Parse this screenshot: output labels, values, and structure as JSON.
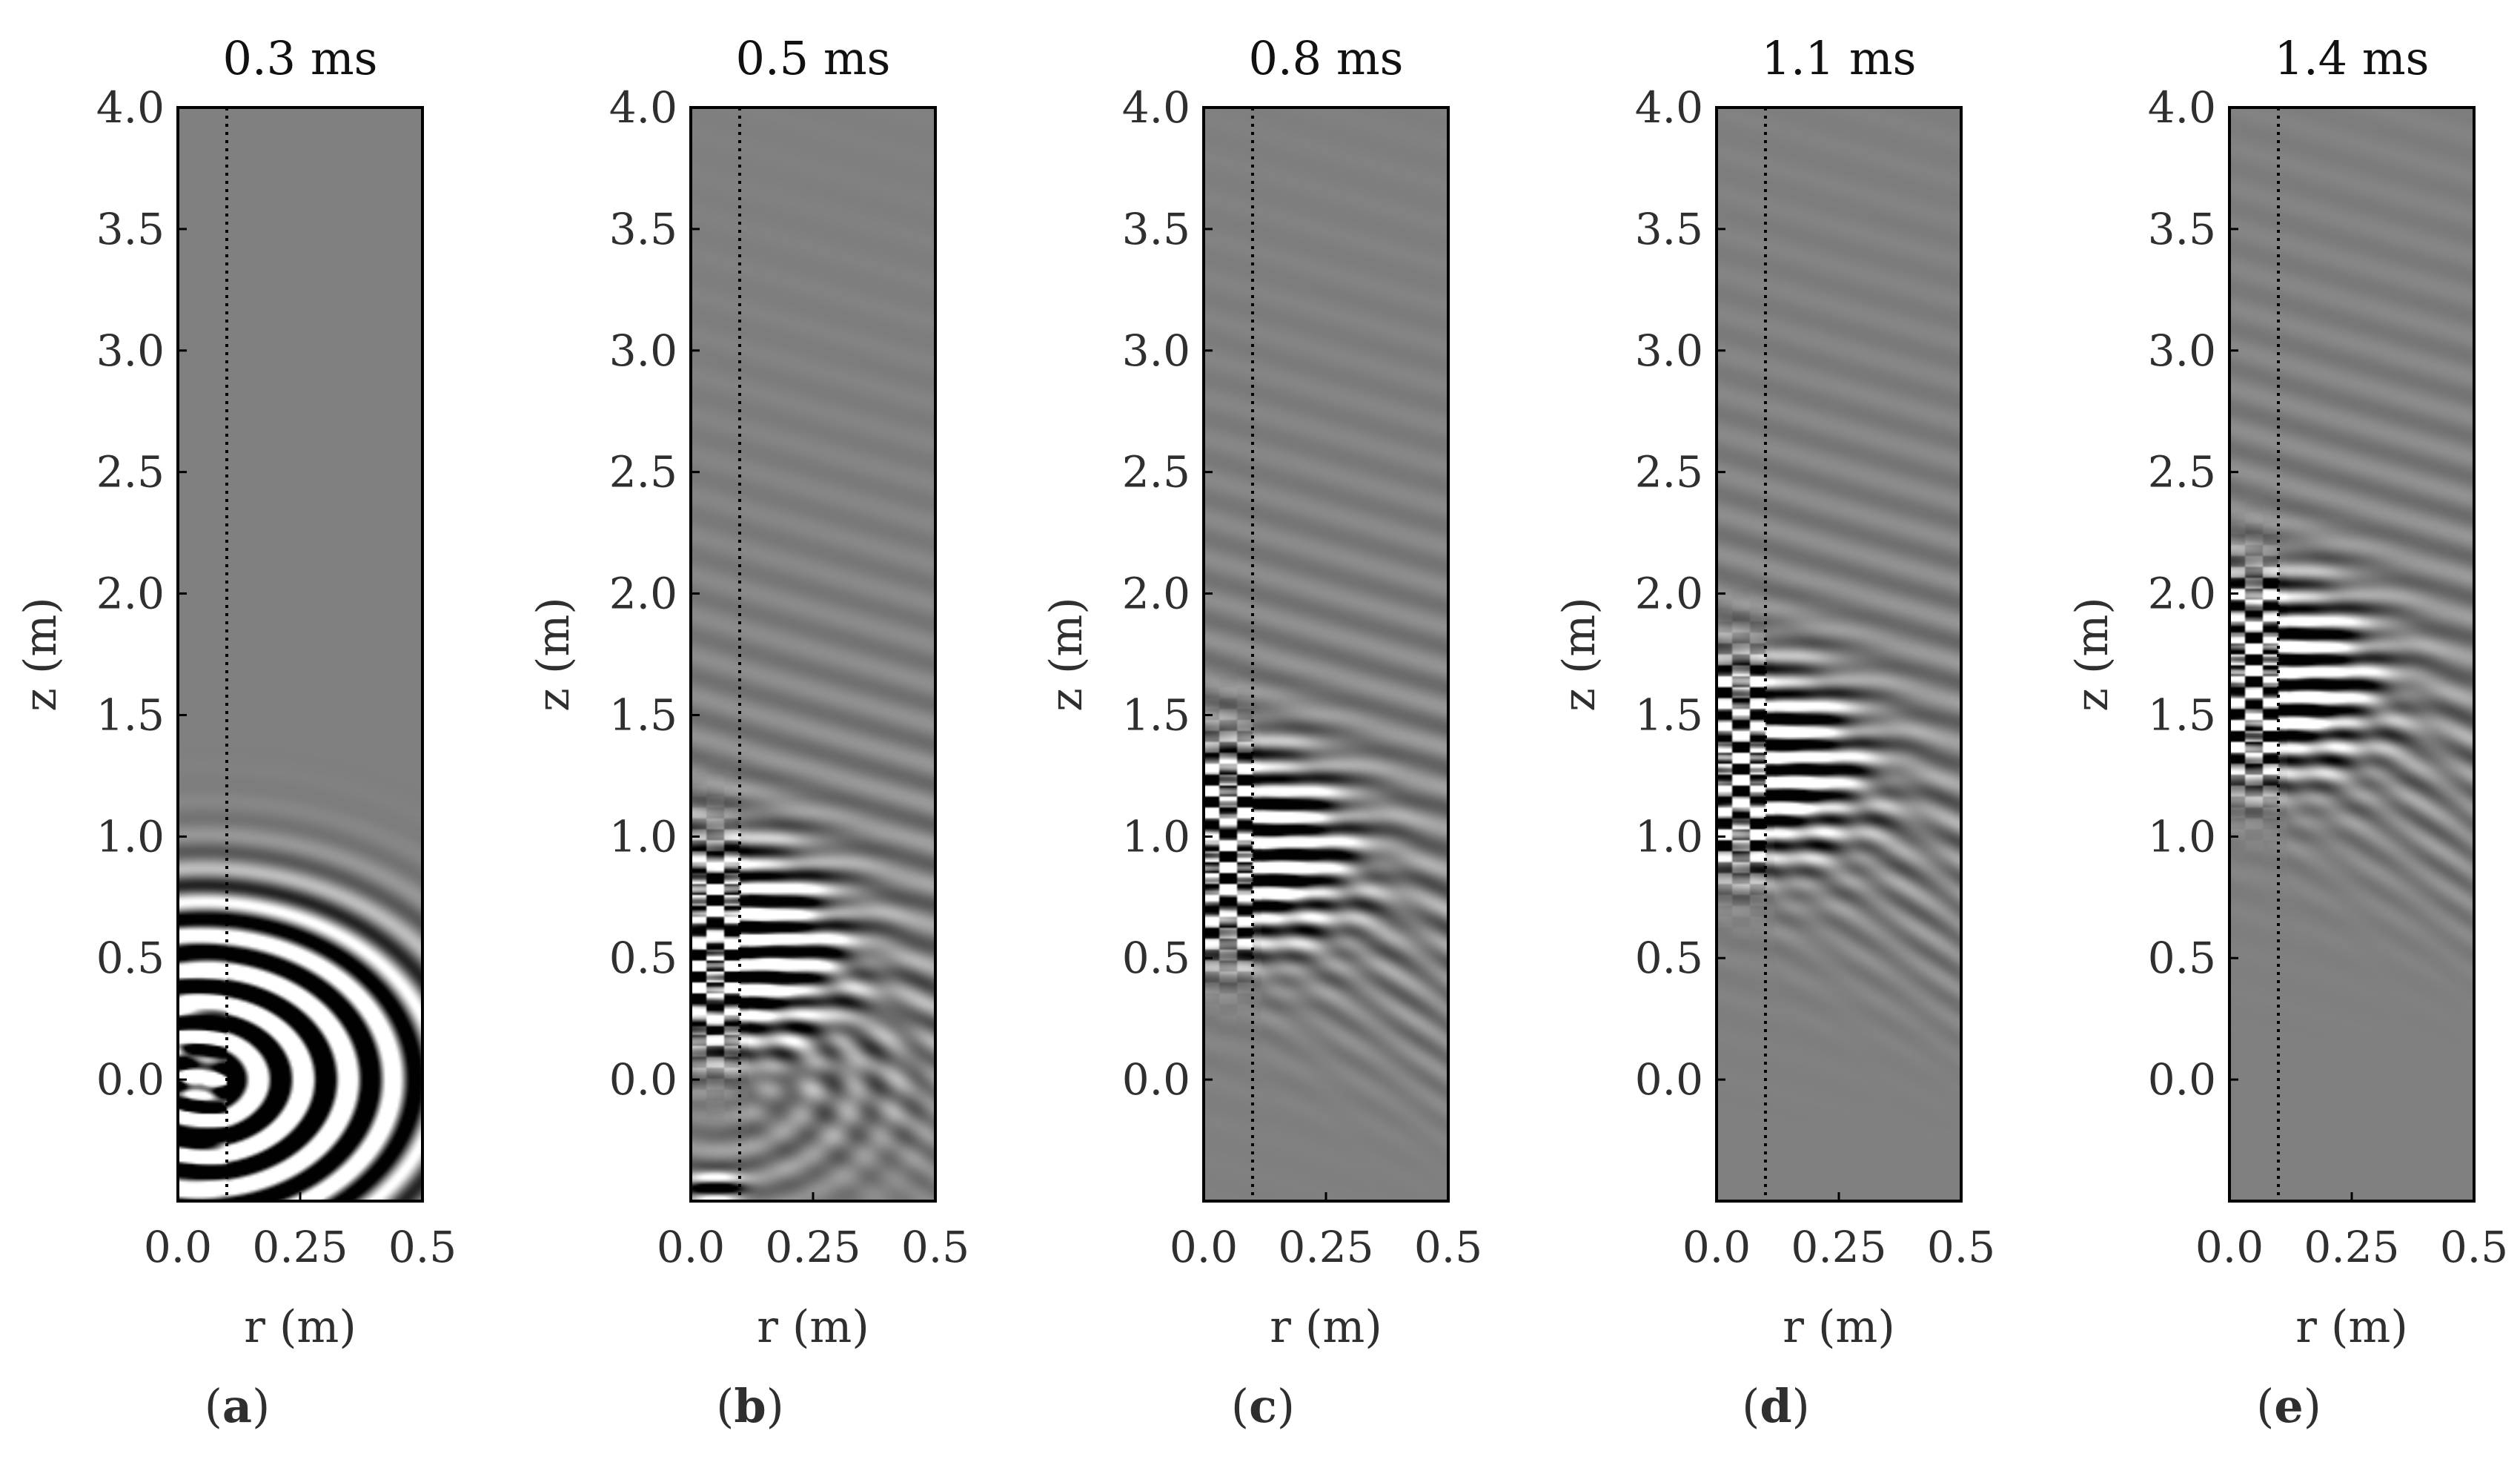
{
  "chart_data": [
    {
      "panel_label": "a",
      "type": "heatmap",
      "title": "0.3 ms",
      "xlabel": "r (m)",
      "ylabel": "z (m)",
      "xlim": [
        0.0,
        0.5
      ],
      "ylim": [
        -0.5,
        4.0
      ],
      "xticks": [
        "0.0",
        "0.25",
        "0.5"
      ],
      "yticks": [
        "0.0",
        "0.5",
        "1.0",
        "1.5",
        "2.0",
        "2.5",
        "3.0",
        "3.5",
        "4.0"
      ],
      "boundary_r": 0.1,
      "wavefront_z": 0.0,
      "amplitude": 1.0,
      "grid": false
    },
    {
      "panel_label": "b",
      "type": "heatmap",
      "title": "0.5 ms",
      "xlabel": "r (m)",
      "ylabel": "z (m)",
      "xlim": [
        0.0,
        0.5
      ],
      "ylim": [
        -0.5,
        4.0
      ],
      "xticks": [
        "0.0",
        "0.25",
        "0.5"
      ],
      "yticks": [
        "0.0",
        "0.5",
        "1.0",
        "1.5",
        "2.0",
        "2.5",
        "3.0",
        "3.5",
        "4.0"
      ],
      "boundary_r": 0.1,
      "wavefront_z": 0.55,
      "amplitude": 1.0,
      "grid": false
    },
    {
      "panel_label": "c",
      "type": "heatmap",
      "title": "0.8 ms",
      "xlabel": "r (m)",
      "ylabel": "z (m)",
      "xlim": [
        0.0,
        0.5
      ],
      "ylim": [
        -0.5,
        4.0
      ],
      "xticks": [
        "0.0",
        "0.25",
        "0.5"
      ],
      "yticks": [
        "0.0",
        "0.5",
        "1.0",
        "1.5",
        "2.0",
        "2.5",
        "3.0",
        "3.5",
        "4.0"
      ],
      "boundary_r": 0.1,
      "wavefront_z": 0.95,
      "amplitude": 0.9,
      "grid": false
    },
    {
      "panel_label": "d",
      "type": "heatmap",
      "title": "1.1 ms",
      "xlabel": "r (m)",
      "ylabel": "z (m)",
      "xlim": [
        0.0,
        0.5
      ],
      "ylim": [
        -0.5,
        4.0
      ],
      "xticks": [
        "0.0",
        "0.25",
        "0.5"
      ],
      "yticks": [
        "0.0",
        "0.5",
        "1.0",
        "1.5",
        "2.0",
        "2.5",
        "3.0",
        "3.5",
        "4.0"
      ],
      "boundary_r": 0.1,
      "wavefront_z": 1.3,
      "amplitude": 0.85,
      "grid": false
    },
    {
      "panel_label": "e",
      "type": "heatmap",
      "title": "1.4 ms",
      "xlabel": "r (m)",
      "ylabel": "z (m)",
      "xlim": [
        0.0,
        0.5
      ],
      "ylim": [
        -0.5,
        4.0
      ],
      "xticks": [
        "0.0",
        "0.25",
        "0.5"
      ],
      "yticks": [
        "0.0",
        "0.5",
        "1.0",
        "1.5",
        "2.0",
        "2.5",
        "3.0",
        "3.5",
        "4.0"
      ],
      "boundary_r": 0.1,
      "wavefront_z": 1.65,
      "amplitude": 0.85,
      "grid": false
    }
  ],
  "colors": {
    "background_field": "#808080",
    "positive": "#ffffff",
    "negative": "#000000",
    "frame": "#000000"
  }
}
